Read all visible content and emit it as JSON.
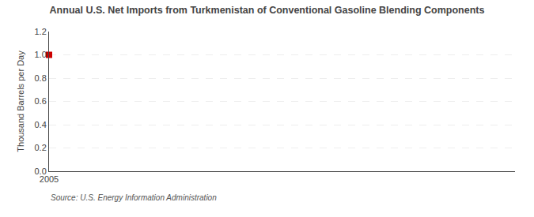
{
  "chart_data": {
    "type": "scatter",
    "title": "Annual U.S. Net Imports from Turkmenistan of Conventional Gasoline Blending Components",
    "y_label": "Thousand Barrels per Day",
    "annotations": [
      "Source: U.S. Energy Information Administration"
    ],
    "x": [
      2005
    ],
    "values": [
      1.0
    ],
    "color": "#cc0000",
    "marker": "square",
    "xlim": [
      2005,
      2015
    ],
    "xticks": [
      2005
    ],
    "ylim": [
      0.0,
      1.2
    ],
    "yticks": [
      {
        "value": 0.0,
        "label": "0.0"
      },
      0.2,
      0.4,
      0.6,
      0.8,
      {
        "value": 1.0,
        "label": "1.0"
      },
      1.2
    ],
    "grid": true
  }
}
